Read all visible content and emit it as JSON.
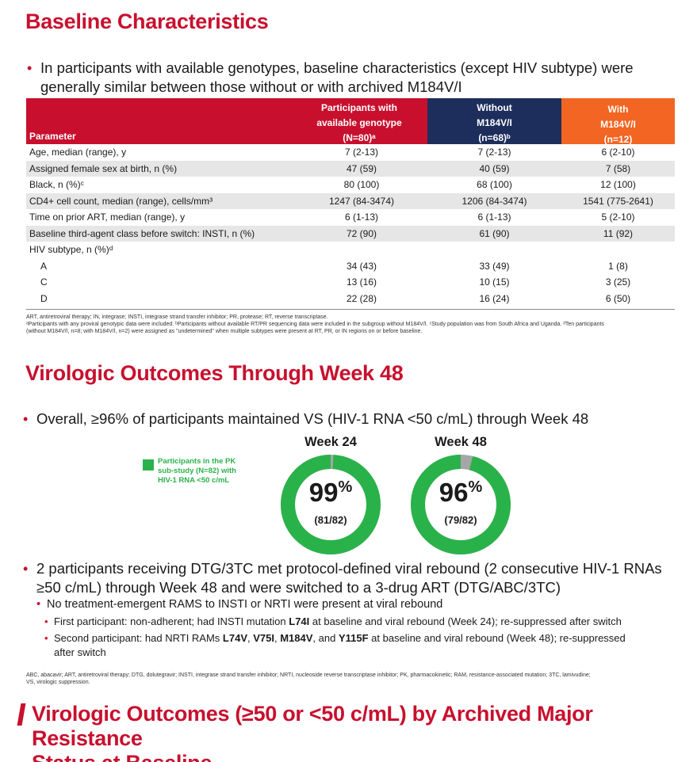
{
  "section1": {
    "title": "Baseline Characteristics",
    "bullet": "In participants with available genotypes, baseline characteristics (except HIV subtype) were",
    "bullet_line2": "generally similar between those without or with archived M184V/I"
  },
  "table": {
    "headers": {
      "parameter": "Parameter",
      "col1_l1": "Participants with",
      "col1_l2": "available genotype",
      "col1_l3": "(N=80)ᵃ",
      "col2_l1": "Without",
      "col2_l2": "M184V/I",
      "col2_l3": "(n=68)ᵇ",
      "col3_l1": "With",
      "col3_l2": "M184V/I",
      "col3_l3": "(n=12)"
    },
    "rows": [
      {
        "param": "Age, median (range), y",
        "c1": "7 (2-13)",
        "c2": "7 (2-13)",
        "c3": "6 (2-10)"
      },
      {
        "param": "Assigned female sex at birth, n (%)",
        "c1": "47 (59)",
        "c2": "40 (59)",
        "c3": "7 (58)"
      },
      {
        "param": "Black, n (%)ᶜ",
        "c1": "80 (100)",
        "c2": "68 (100)",
        "c3": "12 (100)"
      },
      {
        "param": "CD4+ cell count, median (range), cells/mm³",
        "c1": "1247 (84-3474)",
        "c2": "1206 (84-3474)",
        "c3": "1541 (775-2641)"
      },
      {
        "param": "Time on prior ART, median (range), y",
        "c1": "6 (1-13)",
        "c2": "6 (1-13)",
        "c3": "5 (2-10)"
      },
      {
        "param": "Baseline third-agent class before switch: INSTI, n (%)",
        "c1": "72 (90)",
        "c2": "61 (90)",
        "c3": "11 (92)"
      },
      {
        "param": "HIV subtype, n (%)ᵈ",
        "c1": "",
        "c2": "",
        "c3": ""
      },
      {
        "param": "A",
        "c1": "34 (43)",
        "c2": "33 (49)",
        "c3": "1 (8)"
      },
      {
        "param": "C",
        "c1": "13 (16)",
        "c2": "10 (15)",
        "c3": "3 (25)"
      },
      {
        "param": "D",
        "c1": "22 (28)",
        "c2": "16 (24)",
        "c3": "6 (50)"
      }
    ],
    "footnote_l1": "ART, antiretroviral therapy; IN, integrase; INSTI, integrase strand transfer inhibitor; PR, protease; RT, reverse transcriptase.",
    "footnote_l2": "ᵃParticipants with any proviral genotypic data were included. ᵇParticipants without available RT/PR sequencing data were included in the subgroup without M184V/I. ᶜStudy population was from South Africa and Uganda. ᵈTen participants",
    "footnote_l3": "(without M184V/I, n=8; with M184V/I, n=2) were assigned as \"undetermined\" when multiple subtypes were present at RT, PR, or IN regions on or before baseline."
  },
  "section2": {
    "title": "Virologic Outcomes Through Week 48",
    "bullet": "Overall, ≥96% of participants maintained VS (HIV-1 RNA <50 c/mL) through Week 48",
    "legend": "Participants in the PK sub-study (N=82) with HIV-1 RNA <50 c/mL",
    "donuts": [
      {
        "title": "Week 24",
        "pct": "99",
        "pct_sign": "%",
        "frac": "(81/82)",
        "value": 0.99
      },
      {
        "title": "Week 48",
        "pct": "96",
        "pct_sign": "%",
        "frac": "(79/82)",
        "value": 0.96
      }
    ],
    "colors": {
      "green": "#2ab24a",
      "gray": "#a6a6a6",
      "red": "#c8102e"
    },
    "bullet2_l1": "2 participants receiving DTG/3TC met protocol-defined viral rebound (2 consecutive HIV-1 RNAs",
    "bullet2_l2": "≥50 c/mL) through Week 48 and were switched to a 3-drug ART (DTG/ABC/3TC)",
    "sub": "No treatment-emergent RAMS to INSTI or NRTI were present at viral rebound",
    "p1_a": "First participant: non-adherent; had INSTI mutation ",
    "p1_b": "L74I",
    "p1_c": " at baseline and viral rebound (Week 24); re-suppressed after switch",
    "p2_a": "Second participant: had NRTI RAMs ",
    "p2_b": "L74V",
    "p2_c": ", ",
    "p2_d": "V75I",
    "p2_e": ", ",
    "p2_f": "M184V",
    "p2_g": ", and ",
    "p2_h": "Y115F",
    "p2_i": " at baseline and viral rebound (Week 48); re-suppressed",
    "p2_l2": "after switch",
    "footnote_l1": "ABC, abacavir; ART, antiretroviral therapy; DTG, dolutegravir; INSTI, integrase strand transfer inhibitor; NRTI, nucleoside reverse transcriptase inhibitor; PK, pharmacokinetic; RAM, resistance-associated mutation; 3TC, lamivudine;",
    "footnote_l2": "VS, virologic suppression."
  },
  "section3": {
    "title_l1": "Virologic Outcomes (≥50 or <50 c/mL) by Archived Major Resistance",
    "title_l2": "Status at Baseline"
  }
}
